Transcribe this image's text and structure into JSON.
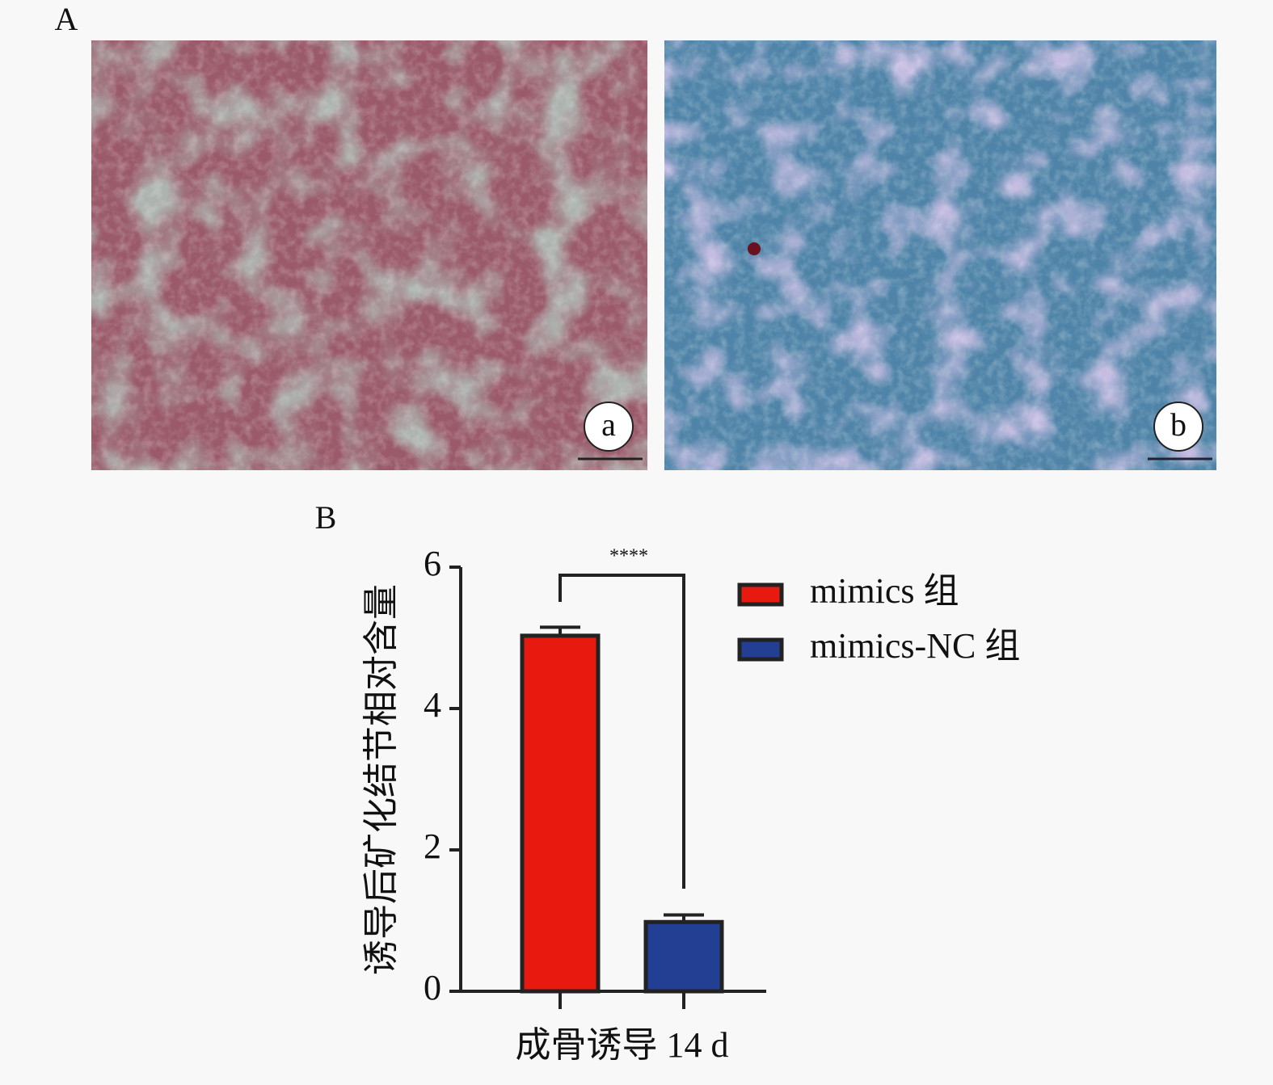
{
  "figure_labels": [
    "A",
    "B"
  ],
  "images": [
    {
      "label": "a"
    },
    {
      "label": "b"
    }
  ],
  "chart_data": {
    "type": "bar",
    "categories": [
      "成骨诱导 14 d"
    ],
    "y_label": "诱导后矿化结节相对含量",
    "ylim": [
      0,
      6
    ],
    "yticks": [
      0,
      2,
      4,
      6
    ],
    "series": [
      {
        "name": "mimics 组",
        "color": "#e8190f",
        "values": [
          5.03
        ],
        "errors": [
          0.12
        ]
      },
      {
        "name": "mimics-NC 组",
        "color": "#233f94",
        "values": [
          0.98
        ],
        "errors": [
          0.1
        ]
      }
    ],
    "annotations": [
      {
        "text": "****"
      }
    ]
  }
}
